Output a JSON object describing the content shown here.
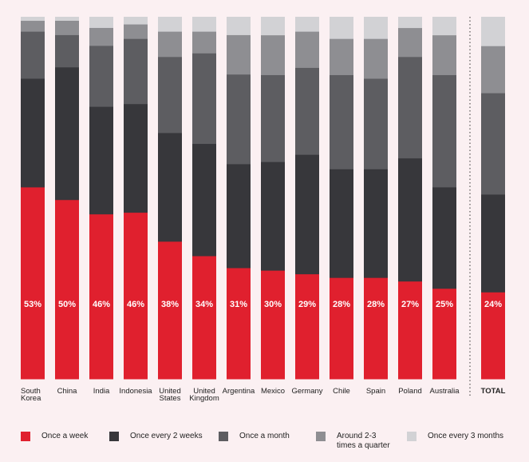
{
  "chart_data": {
    "type": "bar",
    "stacked": true,
    "percent_stacked": true,
    "categories": [
      "South Korea",
      "China",
      "India",
      "Indonesia",
      "United States",
      "United Kingdom",
      "Argentina",
      "Mexico",
      "Germany",
      "Chile",
      "Spain",
      "Poland",
      "Australia",
      "TOTAL"
    ],
    "series": [
      {
        "name": "Once a week",
        "color": "#e0202e",
        "values": [
          53,
          50,
          46,
          46,
          38,
          34,
          31,
          30,
          29,
          28,
          28,
          27,
          25,
          24
        ]
      },
      {
        "name": "Once every 2 weeks",
        "color": "#37373b",
        "values": [
          30,
          37,
          30,
          30,
          30,
          31,
          29,
          30,
          33,
          30,
          30,
          34,
          28,
          27
        ]
      },
      {
        "name": "Once a month",
        "color": "#5d5d61",
        "values": [
          13,
          9,
          17,
          18,
          21,
          25,
          25,
          24,
          24,
          26,
          25,
          28,
          31,
          28
        ]
      },
      {
        "name": "Around 2-3 times a quarter",
        "color": "#8e8e92",
        "values": [
          3,
          4,
          5,
          4,
          7,
          6,
          11,
          11,
          10,
          10,
          11,
          8,
          11,
          13
        ]
      },
      {
        "name": "Once every 3 months",
        "color": "#d2d2d5",
        "values": [
          1,
          1,
          3,
          2,
          4,
          4,
          5,
          5,
          4,
          6,
          6,
          3,
          5,
          8
        ]
      }
    ],
    "data_labels_series": "Once a week",
    "data_labels": [
      "53%",
      "50%",
      "46%",
      "46%",
      "38%",
      "34%",
      "31%",
      "30%",
      "29%",
      "28%",
      "28%",
      "27%",
      "25%",
      "24%"
    ],
    "ylim": [
      0,
      100
    ],
    "legend_position": "bottom",
    "grid": false,
    "separator_before": "TOTAL"
  },
  "legend": [
    {
      "label": "Once a week",
      "color": "#e0202e"
    },
    {
      "label": "Once every 2 weeks",
      "color": "#37373b"
    },
    {
      "label": "Once a month",
      "color": "#5d5d61"
    },
    {
      "label": "Around 2-3\ntimes a quarter",
      "color": "#8e8e92"
    },
    {
      "label": "Once every 3 months",
      "color": "#d2d2d5"
    }
  ]
}
